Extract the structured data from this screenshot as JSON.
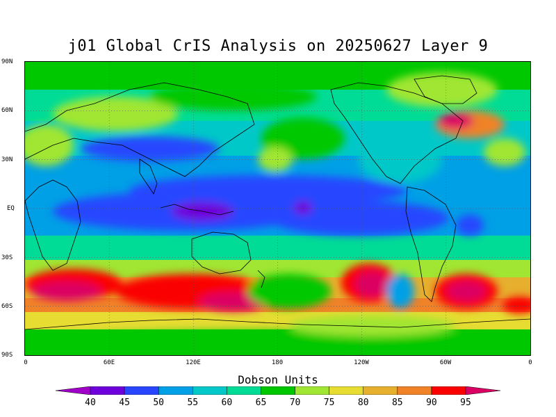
{
  "title": "j01 Global CrIS Analysis on 20250627 Layer 9",
  "lat_labels": [
    "90N",
    "60N",
    "30N",
    "EQ",
    "30S",
    "60S",
    "90S"
  ],
  "lon_labels": [
    "0",
    "60E",
    "120E",
    "180",
    "120W",
    "60W",
    "0"
  ],
  "legend": {
    "title": "Dobson Units",
    "values": [
      "40",
      "45",
      "50",
      "55",
      "60",
      "65",
      "70",
      "75",
      "80",
      "85",
      "90",
      "95"
    ],
    "colors": [
      "#a000c8",
      "#6e00dc",
      "#2846ff",
      "#00a0e6",
      "#00c8c8",
      "#00dc96",
      "#00c800",
      "#a0e632",
      "#e6dc32",
      "#e6af2d",
      "#f08228",
      "#fa0000",
      "#dc0064"
    ]
  }
}
